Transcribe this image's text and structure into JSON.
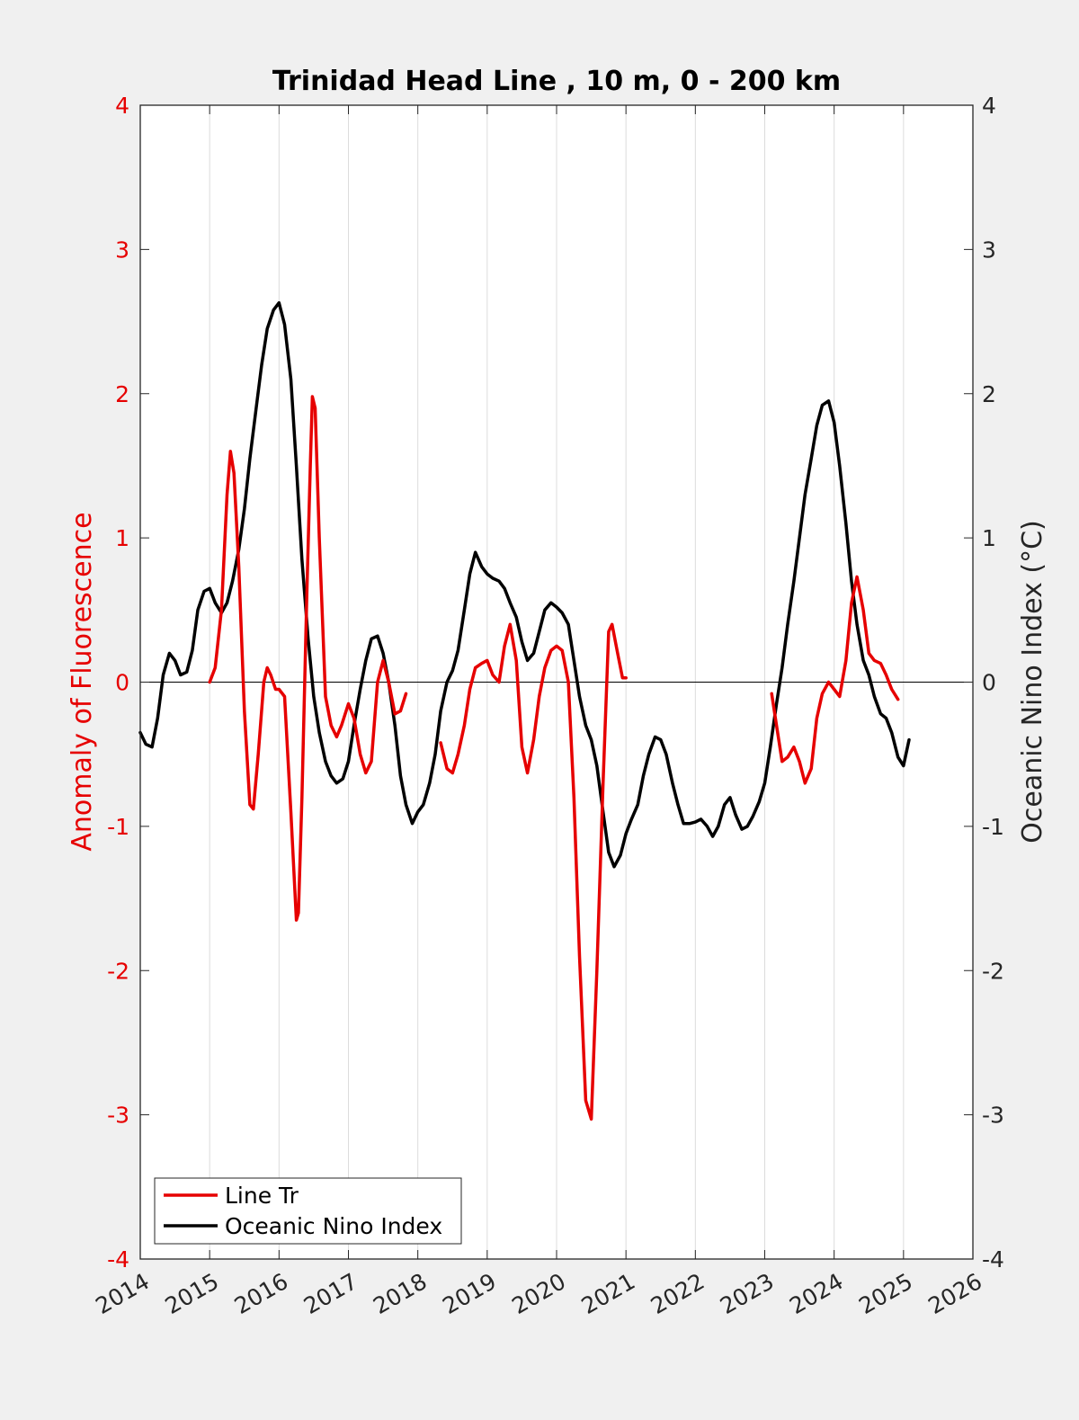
{
  "chart_data": {
    "type": "line",
    "title": "Trinidad Head Line , 10 m, 0 - 200 km",
    "ylabel_left": "Anomaly of Fluorescence",
    "ylabel_right": "Oceanic Nino Index (°C)",
    "xlim": [
      2014,
      2026
    ],
    "ylim_left": [
      -4,
      4
    ],
    "ylim_right": [
      -4,
      4
    ],
    "xticks": [
      2014,
      2015,
      2016,
      2017,
      2018,
      2019,
      2020,
      2021,
      2022,
      2023,
      2024,
      2025,
      2026
    ],
    "yticks_left": [
      4,
      3,
      2,
      1,
      0,
      -1,
      -2,
      -3,
      -4
    ],
    "yticks_right": [
      4,
      3,
      2,
      1,
      0,
      -1,
      -2,
      -3,
      -4
    ],
    "grid": "x-only",
    "zero_line": true,
    "legend_position": "bottom-left",
    "series": [
      {
        "name": "Line Tr",
        "color": "#e60000",
        "axis": "left",
        "segments": [
          [
            [
              2015.0,
              0.0
            ],
            [
              2015.08,
              0.1
            ],
            [
              2015.17,
              0.5
            ],
            [
              2015.25,
              1.3
            ],
            [
              2015.3,
              1.6
            ],
            [
              2015.35,
              1.45
            ],
            [
              2015.42,
              0.8
            ],
            [
              2015.5,
              -0.2
            ],
            [
              2015.58,
              -0.85
            ],
            [
              2015.63,
              -0.88
            ],
            [
              2015.7,
              -0.5
            ],
            [
              2015.78,
              0.0
            ],
            [
              2015.83,
              0.1
            ],
            [
              2015.88,
              0.05
            ],
            [
              2015.95,
              -0.05
            ],
            [
              2016.0,
              -0.05
            ],
            [
              2016.08,
              -0.1
            ],
            [
              2016.17,
              -0.9
            ],
            [
              2016.25,
              -1.65
            ],
            [
              2016.28,
              -1.6
            ],
            [
              2016.33,
              -0.8
            ],
            [
              2016.4,
              0.6
            ],
            [
              2016.45,
              1.5
            ],
            [
              2016.48,
              1.98
            ],
            [
              2016.52,
              1.9
            ],
            [
              2016.58,
              1.0
            ],
            [
              2016.67,
              -0.1
            ],
            [
              2016.75,
              -0.3
            ],
            [
              2016.83,
              -0.38
            ],
            [
              2016.9,
              -0.3
            ],
            [
              2017.0,
              -0.15
            ],
            [
              2017.08,
              -0.25
            ],
            [
              2017.17,
              -0.5
            ],
            [
              2017.25,
              -0.63
            ],
            [
              2017.33,
              -0.55
            ],
            [
              2017.42,
              0.0
            ],
            [
              2017.5,
              0.15
            ],
            [
              2017.58,
              0.0
            ],
            [
              2017.67,
              -0.22
            ],
            [
              2017.75,
              -0.2
            ],
            [
              2017.83,
              -0.08
            ]
          ],
          [
            [
              2018.33,
              -0.42
            ],
            [
              2018.42,
              -0.6
            ],
            [
              2018.5,
              -0.63
            ],
            [
              2018.58,
              -0.5
            ],
            [
              2018.67,
              -0.3
            ],
            [
              2018.75,
              -0.05
            ],
            [
              2018.83,
              0.1
            ],
            [
              2018.92,
              0.13
            ],
            [
              2019.0,
              0.15
            ],
            [
              2019.08,
              0.05
            ],
            [
              2019.17,
              0.0
            ],
            [
              2019.25,
              0.25
            ],
            [
              2019.33,
              0.4
            ],
            [
              2019.42,
              0.15
            ],
            [
              2019.5,
              -0.45
            ],
            [
              2019.58,
              -0.63
            ],
            [
              2019.67,
              -0.4
            ],
            [
              2019.75,
              -0.1
            ],
            [
              2019.83,
              0.1
            ],
            [
              2019.92,
              0.22
            ],
            [
              2020.0,
              0.25
            ],
            [
              2020.08,
              0.22
            ],
            [
              2020.17,
              0.0
            ],
            [
              2020.25,
              -0.8
            ],
            [
              2020.33,
              -1.9
            ],
            [
              2020.42,
              -2.9
            ],
            [
              2020.5,
              -3.03
            ],
            [
              2020.58,
              -2.0
            ],
            [
              2020.67,
              -0.7
            ],
            [
              2020.75,
              0.35
            ],
            [
              2020.8,
              0.4
            ],
            [
              2020.88,
              0.2
            ],
            [
              2020.95,
              0.03
            ],
            [
              2021.0,
              0.03
            ]
          ],
          [
            [
              2023.1,
              -0.08
            ],
            [
              2023.17,
              -0.3
            ],
            [
              2023.25,
              -0.55
            ],
            [
              2023.33,
              -0.52
            ],
            [
              2023.42,
              -0.45
            ],
            [
              2023.5,
              -0.55
            ],
            [
              2023.58,
              -0.7
            ],
            [
              2023.67,
              -0.6
            ],
            [
              2023.75,
              -0.25
            ],
            [
              2023.83,
              -0.08
            ],
            [
              2023.92,
              0.0
            ],
            [
              2024.0,
              -0.05
            ],
            [
              2024.08,
              -0.1
            ],
            [
              2024.17,
              0.15
            ],
            [
              2024.25,
              0.55
            ],
            [
              2024.33,
              0.73
            ],
            [
              2024.42,
              0.5
            ],
            [
              2024.5,
              0.2
            ],
            [
              2024.58,
              0.15
            ],
            [
              2024.67,
              0.13
            ],
            [
              2024.75,
              0.05
            ],
            [
              2024.83,
              -0.05
            ],
            [
              2024.92,
              -0.12
            ]
          ]
        ]
      },
      {
        "name": "Oceanic Nino Index",
        "color": "#000000",
        "axis": "right",
        "segments": [
          [
            [
              2014.0,
              -0.35
            ],
            [
              2014.08,
              -0.43
            ],
            [
              2014.17,
              -0.45
            ],
            [
              2014.25,
              -0.25
            ],
            [
              2014.33,
              0.05
            ],
            [
              2014.42,
              0.2
            ],
            [
              2014.5,
              0.15
            ],
            [
              2014.58,
              0.05
            ],
            [
              2014.67,
              0.07
            ],
            [
              2014.75,
              0.22
            ],
            [
              2014.83,
              0.5
            ],
            [
              2014.92,
              0.63
            ],
            [
              2015.0,
              0.65
            ],
            [
              2015.08,
              0.55
            ],
            [
              2015.17,
              0.48
            ],
            [
              2015.25,
              0.55
            ],
            [
              2015.33,
              0.7
            ],
            [
              2015.42,
              0.92
            ],
            [
              2015.5,
              1.2
            ],
            [
              2015.58,
              1.55
            ],
            [
              2015.67,
              1.9
            ],
            [
              2015.75,
              2.2
            ],
            [
              2015.83,
              2.45
            ],
            [
              2015.92,
              2.58
            ],
            [
              2016.0,
              2.63
            ],
            [
              2016.08,
              2.48
            ],
            [
              2016.17,
              2.1
            ],
            [
              2016.25,
              1.5
            ],
            [
              2016.33,
              0.85
            ],
            [
              2016.42,
              0.3
            ],
            [
              2016.5,
              -0.1
            ],
            [
              2016.58,
              -0.35
            ],
            [
              2016.67,
              -0.55
            ],
            [
              2016.75,
              -0.65
            ],
            [
              2016.83,
              -0.7
            ],
            [
              2016.92,
              -0.67
            ],
            [
              2017.0,
              -0.55
            ],
            [
              2017.08,
              -0.3
            ],
            [
              2017.17,
              -0.05
            ],
            [
              2017.25,
              0.15
            ],
            [
              2017.33,
              0.3
            ],
            [
              2017.42,
              0.32
            ],
            [
              2017.5,
              0.2
            ],
            [
              2017.58,
              0.0
            ],
            [
              2017.67,
              -0.3
            ],
            [
              2017.75,
              -0.65
            ],
            [
              2017.83,
              -0.85
            ],
            [
              2017.92,
              -0.98
            ],
            [
              2018.0,
              -0.9
            ],
            [
              2018.08,
              -0.85
            ],
            [
              2018.17,
              -0.7
            ],
            [
              2018.25,
              -0.5
            ],
            [
              2018.33,
              -0.2
            ],
            [
              2018.42,
              0.0
            ],
            [
              2018.5,
              0.08
            ],
            [
              2018.58,
              0.22
            ],
            [
              2018.67,
              0.5
            ],
            [
              2018.75,
              0.75
            ],
            [
              2018.83,
              0.9
            ],
            [
              2018.92,
              0.8
            ],
            [
              2019.0,
              0.75
            ],
            [
              2019.08,
              0.72
            ],
            [
              2019.17,
              0.7
            ],
            [
              2019.25,
              0.65
            ],
            [
              2019.33,
              0.55
            ],
            [
              2019.42,
              0.45
            ],
            [
              2019.5,
              0.28
            ],
            [
              2019.58,
              0.15
            ],
            [
              2019.67,
              0.2
            ],
            [
              2019.75,
              0.35
            ],
            [
              2019.83,
              0.5
            ],
            [
              2019.92,
              0.55
            ],
            [
              2020.0,
              0.52
            ],
            [
              2020.08,
              0.48
            ],
            [
              2020.17,
              0.4
            ],
            [
              2020.25,
              0.15
            ],
            [
              2020.33,
              -0.1
            ],
            [
              2020.42,
              -0.3
            ],
            [
              2020.5,
              -0.4
            ],
            [
              2020.58,
              -0.58
            ],
            [
              2020.67,
              -0.9
            ],
            [
              2020.75,
              -1.18
            ],
            [
              2020.83,
              -1.28
            ],
            [
              2020.92,
              -1.2
            ],
            [
              2021.0,
              -1.05
            ],
            [
              2021.08,
              -0.95
            ],
            [
              2021.17,
              -0.85
            ],
            [
              2021.25,
              -0.65
            ],
            [
              2021.33,
              -0.5
            ],
            [
              2021.42,
              -0.38
            ],
            [
              2021.5,
              -0.4
            ],
            [
              2021.58,
              -0.5
            ],
            [
              2021.67,
              -0.7
            ],
            [
              2021.75,
              -0.85
            ],
            [
              2021.83,
              -0.98
            ],
            [
              2021.92,
              -0.98
            ],
            [
              2022.0,
              -0.97
            ],
            [
              2022.08,
              -0.95
            ],
            [
              2022.17,
              -1.0
            ],
            [
              2022.25,
              -1.07
            ],
            [
              2022.33,
              -1.0
            ],
            [
              2022.42,
              -0.85
            ],
            [
              2022.5,
              -0.8
            ],
            [
              2022.58,
              -0.92
            ],
            [
              2022.67,
              -1.02
            ],
            [
              2022.75,
              -1.0
            ],
            [
              2022.83,
              -0.93
            ],
            [
              2022.92,
              -0.83
            ],
            [
              2023.0,
              -0.7
            ],
            [
              2023.08,
              -0.45
            ],
            [
              2023.17,
              -0.15
            ],
            [
              2023.25,
              0.1
            ],
            [
              2023.33,
              0.4
            ],
            [
              2023.42,
              0.7
            ],
            [
              2023.5,
              1.0
            ],
            [
              2023.58,
              1.3
            ],
            [
              2023.67,
              1.55
            ],
            [
              2023.75,
              1.78
            ],
            [
              2023.83,
              1.92
            ],
            [
              2023.92,
              1.95
            ],
            [
              2024.0,
              1.8
            ],
            [
              2024.08,
              1.5
            ],
            [
              2024.17,
              1.1
            ],
            [
              2024.25,
              0.7
            ],
            [
              2024.33,
              0.4
            ],
            [
              2024.42,
              0.15
            ],
            [
              2024.5,
              0.05
            ],
            [
              2024.58,
              -0.1
            ],
            [
              2024.67,
              -0.22
            ],
            [
              2024.75,
              -0.25
            ],
            [
              2024.83,
              -0.35
            ],
            [
              2024.92,
              -0.52
            ],
            [
              2025.0,
              -0.58
            ],
            [
              2025.08,
              -0.4
            ]
          ]
        ]
      }
    ]
  }
}
